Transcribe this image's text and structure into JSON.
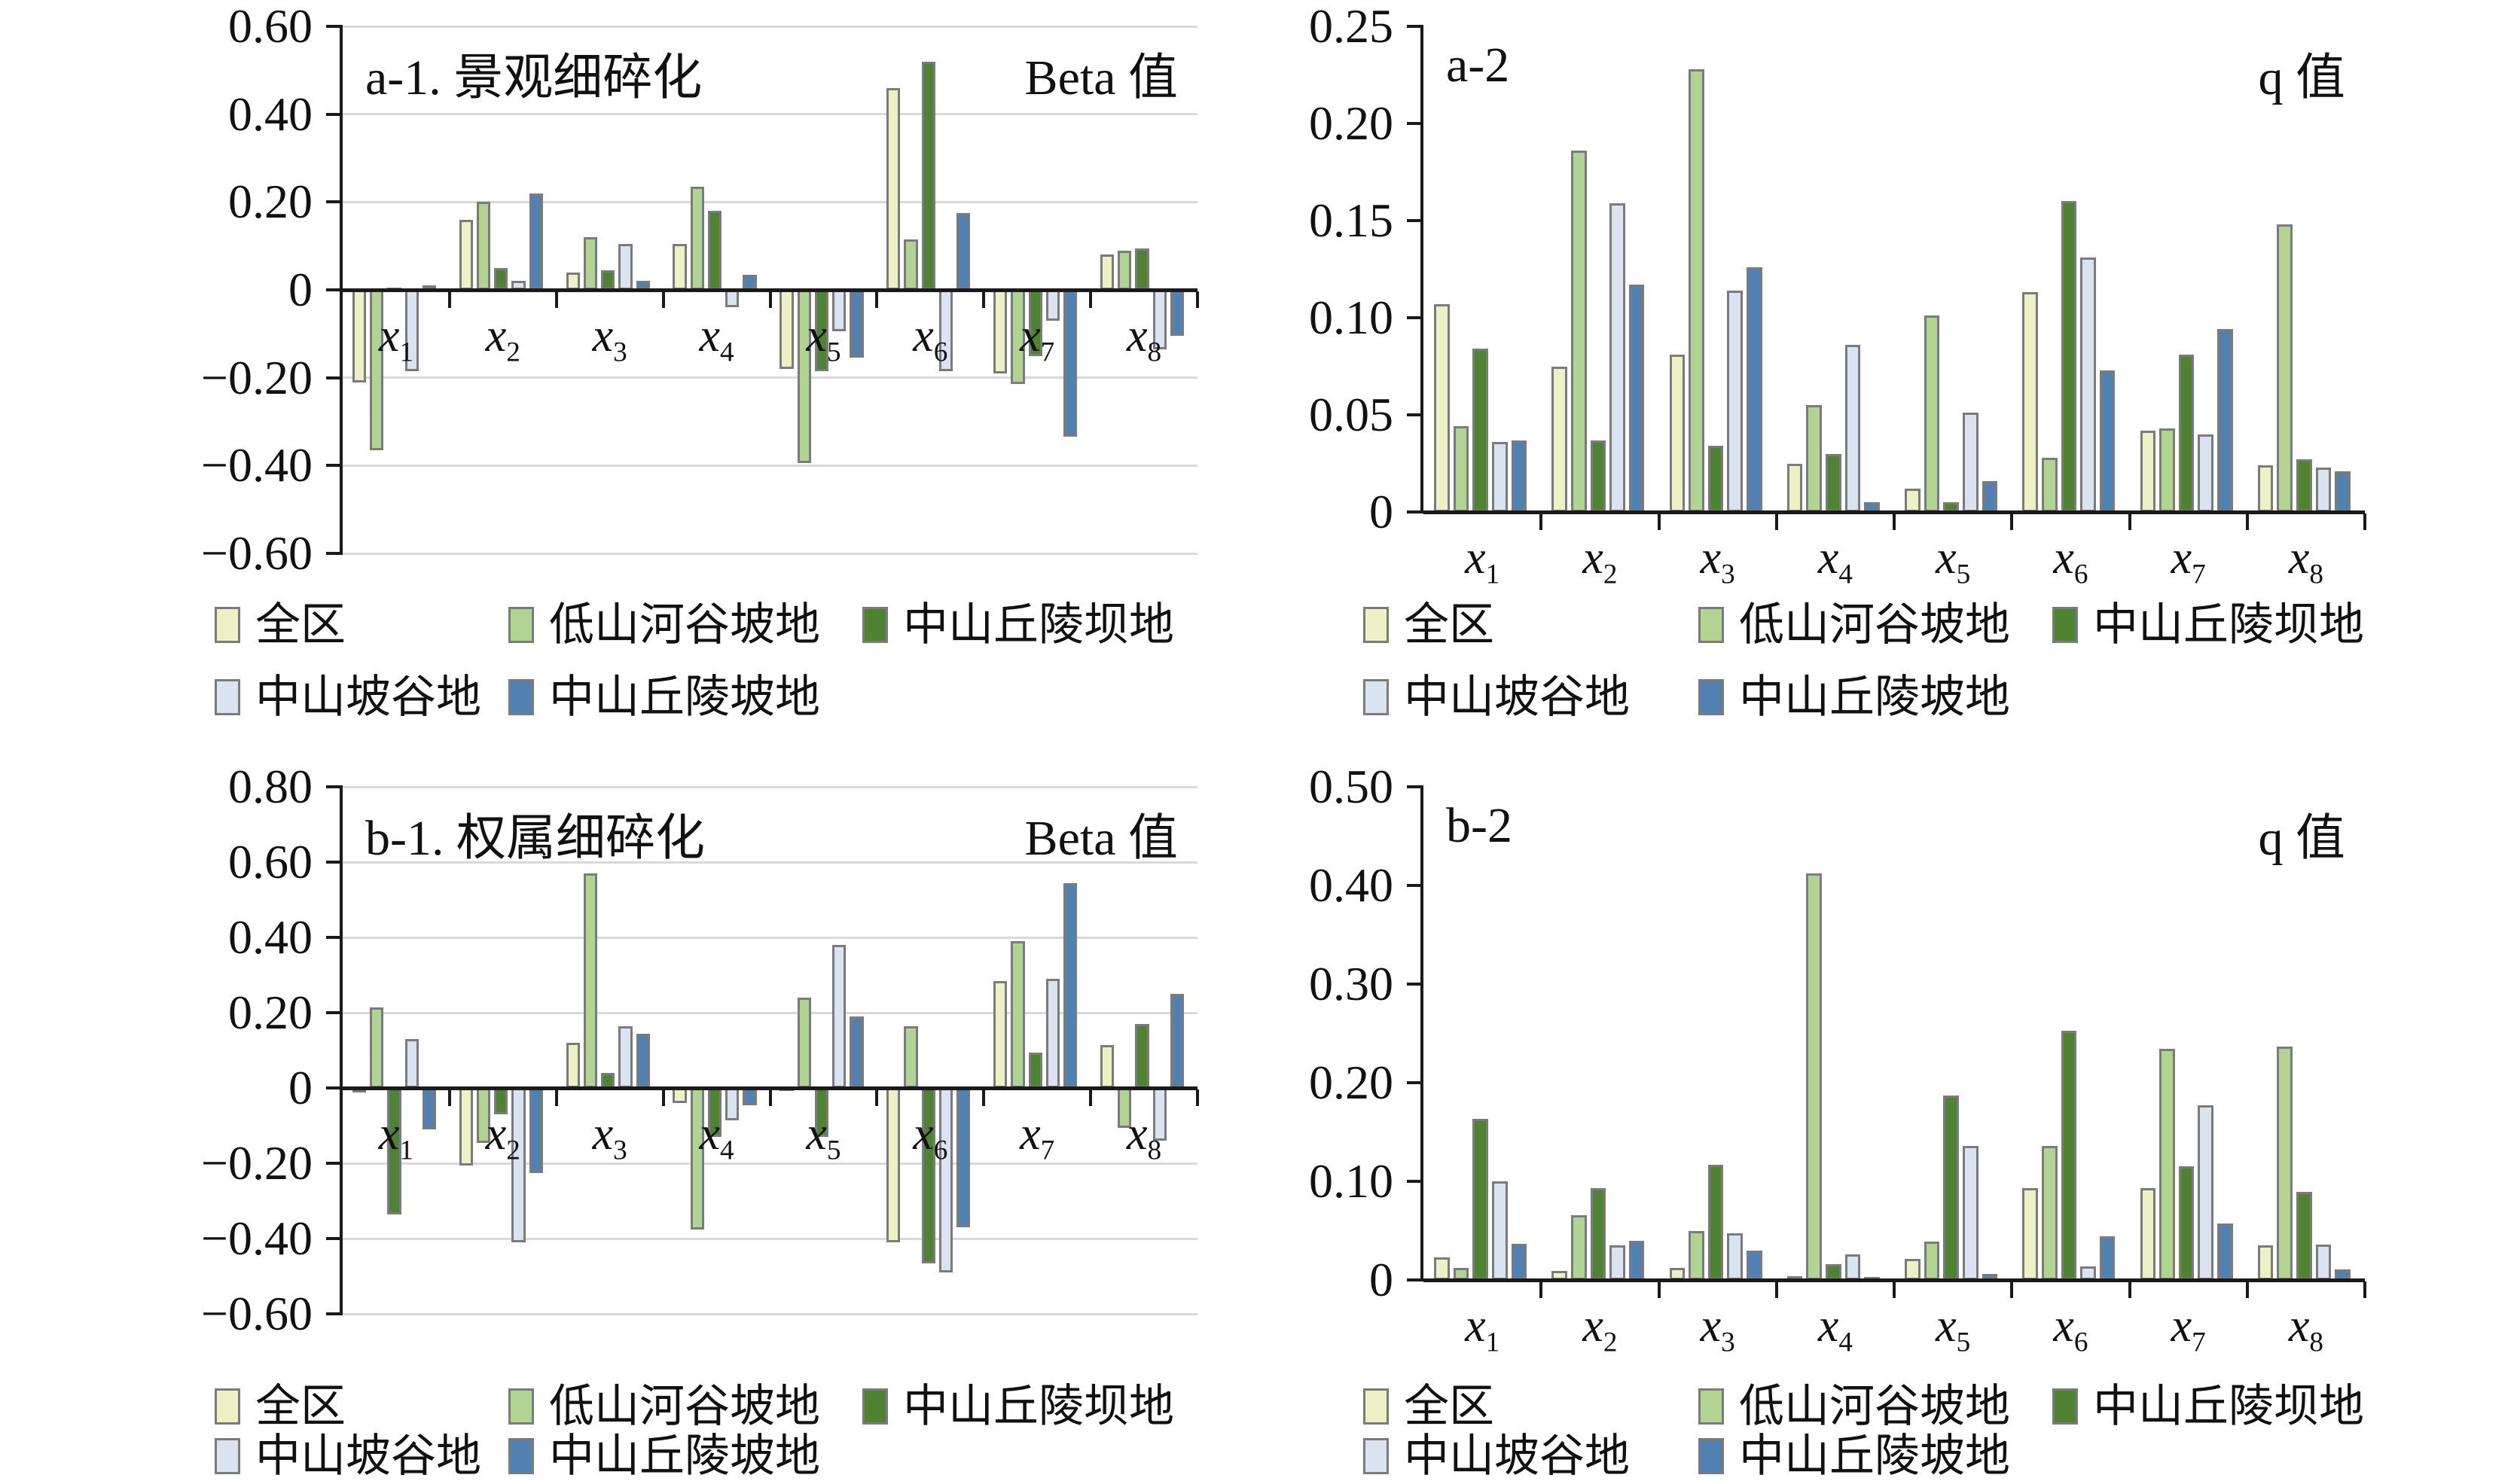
{
  "colors": {
    "series": [
      "#eef0c6",
      "#b1d492",
      "#4f8333",
      "#d9e4f0",
      "#5081b1"
    ],
    "bar_border": "#7b7b7b",
    "gridline": "#d9d9d9",
    "axis": "#1a1a1a"
  },
  "legend": {
    "items": [
      "全区",
      "低山河谷坡地",
      "中山丘陵坝地",
      "中山坡谷地",
      "中山丘陵坡地"
    ]
  },
  "chart_data": [
    {
      "type": "bar",
      "id": "a1",
      "title": "a-1. 景观细碎化",
      "unit": "Beta 值",
      "categories": [
        "x1",
        "x2",
        "x3",
        "x4",
        "x5",
        "x6",
        "x7",
        "x8"
      ],
      "ylim": [
        -0.6,
        0.6
      ],
      "ytick_step": 0.2,
      "ytick_labels": [
        "0.60",
        "0.40",
        "0.20",
        "0",
        "−0.20",
        "−0.40",
        "−0.60"
      ],
      "gridlines": true,
      "legend_position": "bottom",
      "series": [
        {
          "name": "全区",
          "values": [
            -0.21,
            0.16,
            0.04,
            0.105,
            -0.18,
            0.46,
            -0.19,
            0.08
          ]
        },
        {
          "name": "低山河谷坡地",
          "values": [
            -0.365,
            0.2,
            0.12,
            0.235,
            -0.395,
            0.115,
            -0.215,
            0.09
          ]
        },
        {
          "name": "中山丘陵坝地",
          "values": [
            0.005,
            0.05,
            0.045,
            0.18,
            -0.185,
            0.52,
            -0.15,
            0.095
          ]
        },
        {
          "name": "中山坡谷地",
          "values": [
            -0.185,
            0.02,
            0.105,
            -0.04,
            -0.095,
            -0.185,
            -0.07,
            -0.135
          ]
        },
        {
          "name": "中山丘陵坡地",
          "values": [
            0.01,
            0.22,
            0.02,
            0.035,
            -0.155,
            0.175,
            -0.335,
            -0.105
          ]
        }
      ]
    },
    {
      "type": "bar",
      "id": "a2",
      "title": "a-2",
      "unit": "q 值",
      "categories": [
        "x1",
        "x2",
        "x3",
        "x4",
        "x5",
        "x6",
        "x7",
        "x8"
      ],
      "ylim": [
        0,
        0.25
      ],
      "ytick_step": 0.05,
      "ytick_labels": [
        "0.25",
        "0.20",
        "0.15",
        "0.10",
        "0.05",
        "0"
      ],
      "gridlines": false,
      "legend_position": "bottom",
      "series": [
        {
          "name": "全区",
          "values": [
            0.107,
            0.075,
            0.081,
            0.025,
            0.012,
            0.113,
            0.042,
            0.024
          ]
        },
        {
          "name": "低山河谷坡地",
          "values": [
            0.044,
            0.186,
            0.228,
            0.055,
            0.101,
            0.028,
            0.043,
            0.148
          ]
        },
        {
          "name": "中山丘陵坝地",
          "values": [
            0.084,
            0.037,
            0.034,
            0.03,
            0.005,
            0.16,
            0.081,
            0.027
          ]
        },
        {
          "name": "中山坡谷地",
          "values": [
            0.036,
            0.159,
            0.114,
            0.086,
            0.051,
            0.131,
            0.04,
            0.023
          ]
        },
        {
          "name": "中山丘陵坡地",
          "values": [
            0.037,
            0.117,
            0.126,
            0.005,
            0.016,
            0.073,
            0.094,
            0.021
          ]
        }
      ]
    },
    {
      "type": "bar",
      "id": "b1",
      "title": "b-1. 权属细碎化",
      "unit": "Beta 值",
      "categories": [
        "x1",
        "x2",
        "x3",
        "x4",
        "x5",
        "x6",
        "x7",
        "x8"
      ],
      "ylim": [
        -0.6,
        0.8
      ],
      "ytick_step": 0.2,
      "ytick_labels": [
        "0.80",
        "0.60",
        "0.40",
        "0.20",
        "0",
        "−0.20",
        "−0.40",
        "−0.60"
      ],
      "gridlines": true,
      "legend_position": "bottom",
      "series": [
        {
          "name": "全区",
          "values": [
            -0.01,
            -0.205,
            0.12,
            -0.04,
            0.005,
            -0.41,
            0.285,
            0.115
          ]
        },
        {
          "name": "低山河谷坡地",
          "values": [
            0.215,
            -0.145,
            0.57,
            -0.375,
            0.24,
            0.165,
            0.39,
            -0.105
          ]
        },
        {
          "name": "中山丘陵坝地",
          "values": [
            -0.335,
            -0.07,
            0.04,
            -0.13,
            -0.13,
            -0.465,
            0.095,
            0.17
          ]
        },
        {
          "name": "中山坡谷地",
          "values": [
            0.13,
            -0.41,
            0.165,
            -0.085,
            0.38,
            -0.49,
            0.29,
            -0.14
          ]
        },
        {
          "name": "中山丘陵坡地",
          "values": [
            -0.11,
            -0.225,
            0.145,
            -0.045,
            0.19,
            -0.37,
            0.545,
            0.25
          ]
        }
      ]
    },
    {
      "type": "bar",
      "id": "b2",
      "title": "b-2",
      "unit": "q 值",
      "categories": [
        "x1",
        "x2",
        "x3",
        "x4",
        "x5",
        "x6",
        "x7",
        "x8"
      ],
      "ylim": [
        0,
        0.5
      ],
      "ytick_step": 0.1,
      "ytick_labels": [
        "0.50",
        "0.40",
        "0.30",
        "0.20",
        "0.10",
        "0"
      ],
      "gridlines": false,
      "legend_position": "bottom",
      "series": [
        {
          "name": "全区",
          "values": [
            0.023,
            0.009,
            0.012,
            0.004,
            0.021,
            0.093,
            0.093,
            0.035
          ]
        },
        {
          "name": "低山河谷坡地",
          "values": [
            0.012,
            0.066,
            0.05,
            0.412,
            0.039,
            0.136,
            0.234,
            0.237
          ]
        },
        {
          "name": "中山丘陵坝地",
          "values": [
            0.163,
            0.093,
            0.117,
            0.016,
            0.187,
            0.253,
            0.115,
            0.089
          ]
        },
        {
          "name": "中山坡谷地",
          "values": [
            0.1,
            0.035,
            0.047,
            0.026,
            0.136,
            0.014,
            0.177,
            0.036
          ]
        },
        {
          "name": "中山丘陵坡地",
          "values": [
            0.037,
            0.04,
            0.03,
            0.003,
            0.006,
            0.044,
            0.057,
            0.011
          ]
        }
      ]
    }
  ]
}
